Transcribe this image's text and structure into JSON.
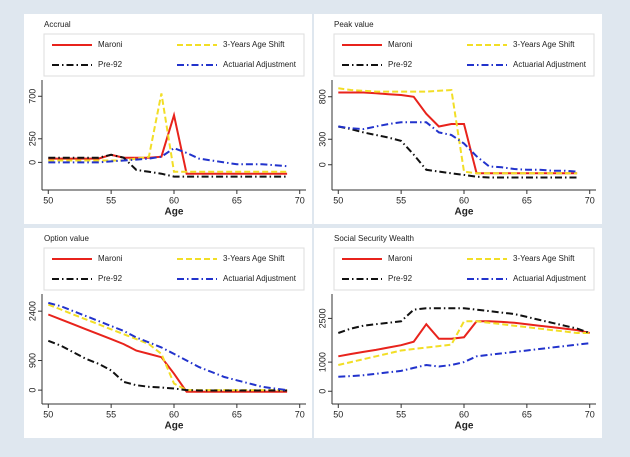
{
  "chart_data": [
    {
      "type": "line",
      "title": "Accrual",
      "x_label": "Age",
      "x": [
        50,
        51,
        52,
        53,
        54,
        55,
        56,
        57,
        58,
        59,
        60,
        61,
        62,
        63,
        64,
        65,
        66,
        67,
        68,
        69
      ],
      "xlim": [
        49.5,
        70.5
      ],
      "xticks": [
        50,
        55,
        60,
        65,
        70
      ],
      "ylim": [
        -250,
        830
      ],
      "yticks": [
        0,
        250,
        700
      ],
      "series": [
        {
          "name": "Maroni",
          "color": "#e8231c",
          "linestyle": "solid",
          "values": [
            40,
            40,
            40,
            40,
            40,
            80,
            50,
            50,
            50,
            60,
            500,
            -120,
            -120,
            -120,
            -120,
            -120,
            -120,
            -120,
            -120,
            -120
          ]
        },
        {
          "name": "3-Years Age Shift",
          "color": "#f2de26",
          "linestyle": "dashed",
          "values": [
            20,
            20,
            20,
            20,
            20,
            20,
            20,
            40,
            60,
            730,
            -100,
            -100,
            -100,
            -100,
            -100,
            -100,
            -100,
            -100,
            -100,
            -100
          ]
        },
        {
          "name": "Pre-92",
          "color": "#111111",
          "linestyle": "dashdot",
          "values": [
            50,
            50,
            50,
            50,
            50,
            80,
            50,
            -80,
            -100,
            -120,
            -150,
            -150,
            -150,
            -150,
            -150,
            -150,
            -150,
            -150,
            -150,
            -150
          ]
        },
        {
          "name": "Actuarial Adjustment",
          "color": "#2233cc",
          "linestyle": "dashdot",
          "values": [
            0,
            0,
            0,
            0,
            0,
            10,
            20,
            30,
            40,
            60,
            150,
            100,
            40,
            20,
            0,
            -20,
            -20,
            -20,
            -30,
            -40
          ]
        }
      ]
    },
    {
      "type": "line",
      "title": "Peak value",
      "x_label": "Age",
      "x": [
        50,
        51,
        52,
        53,
        54,
        55,
        56,
        57,
        58,
        59,
        60,
        61,
        62,
        63,
        64,
        65,
        66,
        67,
        68,
        69
      ],
      "xlim": [
        49.5,
        70.5
      ],
      "xticks": [
        50,
        55,
        60,
        65,
        70
      ],
      "ylim": [
        -250,
        950
      ],
      "yticks": [
        0,
        300,
        800
      ],
      "series": [
        {
          "name": "Maroni",
          "color": "#e8231c",
          "linestyle": "solid",
          "values": [
            850,
            850,
            850,
            840,
            830,
            820,
            800,
            600,
            450,
            480,
            480,
            -100,
            -100,
            -100,
            -100,
            -100,
            -100,
            -100,
            -100,
            -100
          ]
        },
        {
          "name": "3-Years Age Shift",
          "color": "#f2de26",
          "linestyle": "dashed",
          "values": [
            900,
            880,
            870,
            860,
            860,
            860,
            860,
            860,
            870,
            880,
            -80,
            -100,
            -100,
            -100,
            -100,
            -100,
            -100,
            -100,
            -100,
            -100
          ]
        },
        {
          "name": "Pre-92",
          "color": "#111111",
          "linestyle": "dashdot",
          "values": [
            450,
            420,
            380,
            350,
            320,
            280,
            120,
            -60,
            -80,
            -100,
            -120,
            -140,
            -150,
            -150,
            -150,
            -150,
            -150,
            -150,
            -150,
            -150
          ]
        },
        {
          "name": "Actuarial Adjustment",
          "color": "#2233cc",
          "linestyle": "dashdot",
          "values": [
            450,
            430,
            420,
            450,
            480,
            500,
            500,
            500,
            380,
            350,
            250,
            100,
            -20,
            -30,
            -50,
            -60,
            -60,
            -70,
            -70,
            -80
          ]
        }
      ]
    },
    {
      "type": "line",
      "title": "Option value",
      "x_label": "Age",
      "x": [
        50,
        51,
        52,
        53,
        54,
        55,
        56,
        57,
        58,
        59,
        60,
        61,
        62,
        63,
        64,
        65,
        66,
        67,
        68,
        69
      ],
      "xlim": [
        49.5,
        70.5
      ],
      "xticks": [
        50,
        55,
        60,
        65,
        70
      ],
      "ylim": [
        -300,
        2800
      ],
      "yticks": [
        0,
        900,
        2400
      ],
      "series": [
        {
          "name": "Maroni",
          "color": "#e8231c",
          "linestyle": "solid",
          "values": [
            2300,
            2150,
            2000,
            1850,
            1700,
            1550,
            1400,
            1200,
            1100,
            1000,
            500,
            -50,
            -50,
            -50,
            -50,
            -50,
            -50,
            -50,
            -50,
            -50
          ]
        },
        {
          "name": "3-Years Age Shift",
          "color": "#f2de26",
          "linestyle": "dashed",
          "values": [
            2600,
            2450,
            2300,
            2150,
            2000,
            1850,
            1700,
            1550,
            1400,
            1100,
            200,
            0,
            0,
            0,
            0,
            0,
            0,
            0,
            0,
            0
          ]
        },
        {
          "name": "Pre-92",
          "color": "#111111",
          "linestyle": "dashdot",
          "values": [
            1500,
            1350,
            1150,
            950,
            800,
            600,
            250,
            150,
            100,
            80,
            50,
            0,
            -10,
            -10,
            -10,
            -10,
            -10,
            -10,
            -10,
            -10
          ]
        },
        {
          "name": "Actuarial Adjustment",
          "color": "#2233cc",
          "linestyle": "dashdot",
          "values": [
            2650,
            2550,
            2400,
            2250,
            2100,
            1950,
            1800,
            1600,
            1450,
            1300,
            1100,
            900,
            700,
            550,
            400,
            300,
            200,
            100,
            50,
            0
          ]
        }
      ]
    },
    {
      "type": "line",
      "title": "Social Security Wealth",
      "x_label": "Age",
      "x": [
        50,
        51,
        52,
        53,
        54,
        55,
        56,
        57,
        58,
        59,
        60,
        61,
        62,
        63,
        64,
        65,
        66,
        67,
        68,
        69,
        70
      ],
      "xlim": [
        49.5,
        70.5
      ],
      "xticks": [
        50,
        55,
        60,
        65,
        70
      ],
      "ylim": [
        -300,
        3200
      ],
      "yticks": [
        0,
        1000,
        2500
      ],
      "series": [
        {
          "name": "Maroni",
          "color": "#e8231c",
          "linestyle": "solid",
          "values": [
            1200,
            1280,
            1350,
            1420,
            1500,
            1580,
            1700,
            2300,
            1800,
            1800,
            1850,
            2400,
            2400,
            2380,
            2350,
            2300,
            2250,
            2200,
            2150,
            2100,
            2000
          ]
        },
        {
          "name": "3-Years Age Shift",
          "color": "#f2de26",
          "linestyle": "dashed",
          "values": [
            900,
            1000,
            1100,
            1200,
            1300,
            1400,
            1450,
            1500,
            1550,
            1600,
            2400,
            2400,
            2350,
            2300,
            2250,
            2200,
            2150,
            2100,
            2050,
            2000,
            2000
          ]
        },
        {
          "name": "Pre-92",
          "color": "#111111",
          "linestyle": "dashdot",
          "values": [
            2000,
            2150,
            2250,
            2300,
            2350,
            2400,
            2800,
            2850,
            2850,
            2850,
            2850,
            2800,
            2750,
            2700,
            2650,
            2550,
            2450,
            2350,
            2250,
            2150,
            2000
          ]
        },
        {
          "name": "Actuarial Adjustment",
          "color": "#2233cc",
          "linestyle": "dashdot",
          "values": [
            500,
            520,
            550,
            600,
            650,
            700,
            800,
            900,
            850,
            900,
            1000,
            1200,
            1250,
            1300,
            1350,
            1400,
            1450,
            1500,
            1550,
            1600,
            1650
          ]
        }
      ]
    }
  ]
}
